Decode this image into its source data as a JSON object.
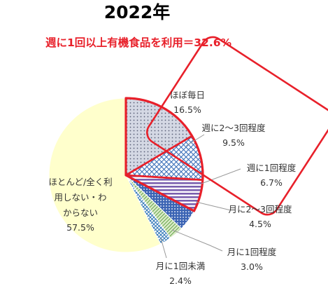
{
  "chart_data": {
    "type": "pie",
    "title": "2022年",
    "subtitle": "週に1回以上有機食品を利用＝32.6%",
    "slices": [
      {
        "label": "ほぼ毎日",
        "value": 16.5,
        "value_label": "16.5%",
        "fill": "#c8ccd8",
        "pattern": "dots"
      },
      {
        "label": "週に2～3回程度",
        "value": 9.5,
        "value_label": "9.5%",
        "fill": "#e8eef8",
        "pattern": "crosshatch"
      },
      {
        "label": "週に1回程度",
        "value": 6.7,
        "value_label": "6.7%",
        "fill": "#8a72b8",
        "pattern": "h-stripes"
      },
      {
        "label": "月に2～3回程度",
        "value": 4.5,
        "value_label": "4.5%",
        "fill": "#4472c4",
        "pattern": "dots-dense"
      },
      {
        "label": "月に1回程度",
        "value": 3.0,
        "value_label": "3.0%",
        "fill": "#c6e0b4",
        "pattern": "diagonal"
      },
      {
        "label": "月に1回未満",
        "value": 2.4,
        "value_label": "2.4%",
        "fill": "#5b9bd5",
        "pattern": "grid"
      },
      {
        "label": "ほとんど/全く利用しない・わからない",
        "value": 57.5,
        "value_label": "57.5%",
        "fill": "#ffffcc",
        "pattern": "none"
      }
    ],
    "highlight_first_n": 3,
    "highlight_color": "#e8202a",
    "legend": "none"
  }
}
